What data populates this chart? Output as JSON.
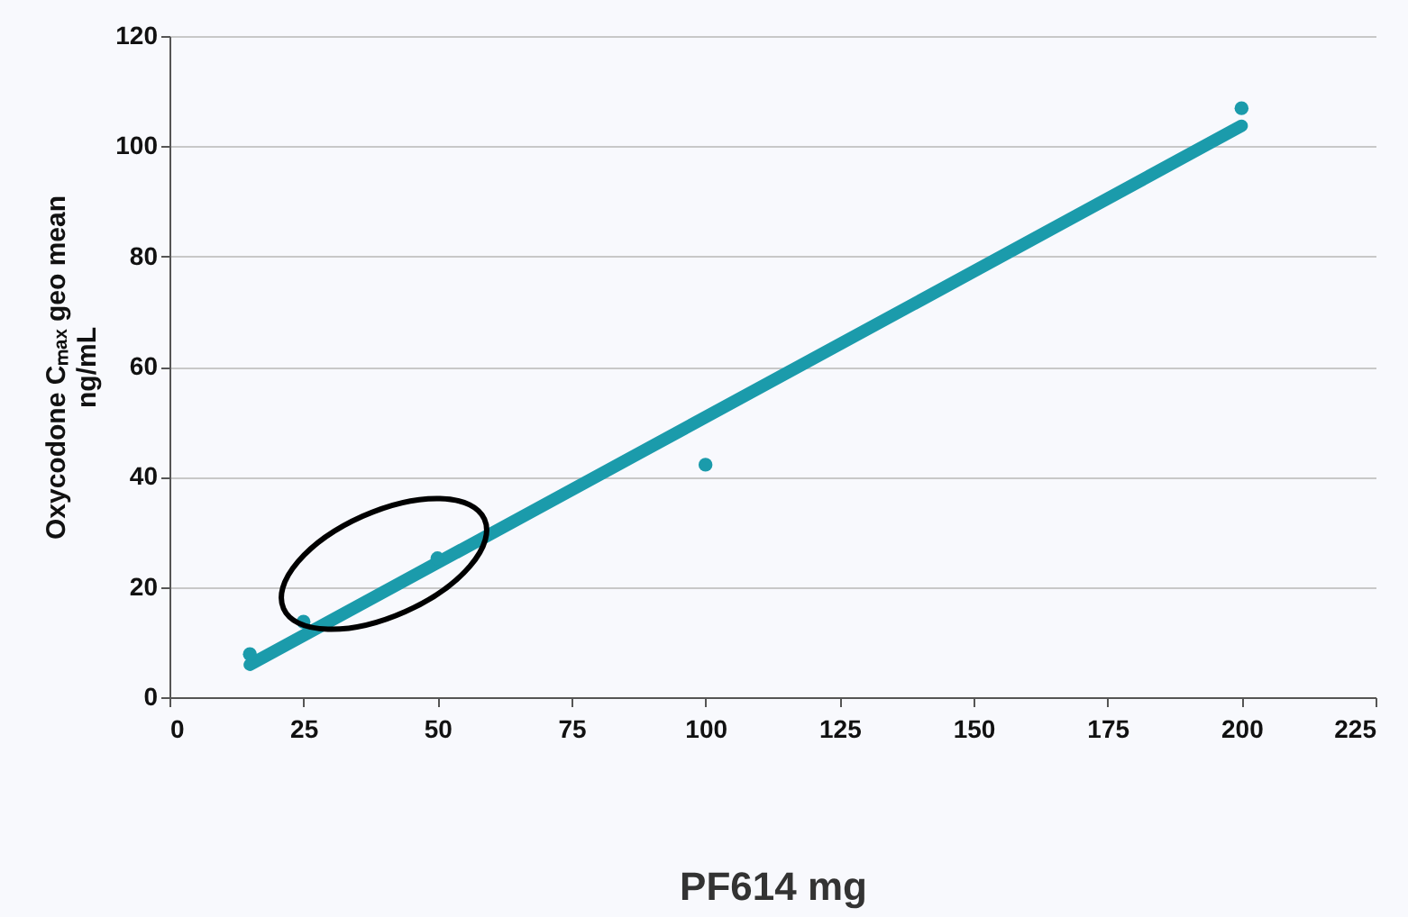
{
  "chart_data": {
    "type": "scatter",
    "xlabel": "PF614 mg",
    "ylabel": "Oxycodone Cₘₐₓ geo mean\nng/mL",
    "xlim": [
      0,
      225
    ],
    "xticks": [
      0,
      25,
      50,
      75,
      100,
      125,
      150,
      175,
      200,
      225
    ],
    "ylim": [
      0,
      120
    ],
    "yticks": [
      0,
      20,
      40,
      60,
      80,
      100,
      120
    ],
    "grid": "y",
    "series": [
      {
        "color": "#1b9bab",
        "marker": "circle",
        "x": [
          15,
          25,
          50,
          100,
          200
        ],
        "values": [
          7.8,
          13.7,
          25.2,
          42.2,
          106.9
        ]
      },
      {
        "type": "line",
        "color": "#1b9bab",
        "line_style": "solid",
        "x": [
          15,
          200
        ],
        "values": [
          5.9,
          103.7
        ]
      }
    ]
  }
}
